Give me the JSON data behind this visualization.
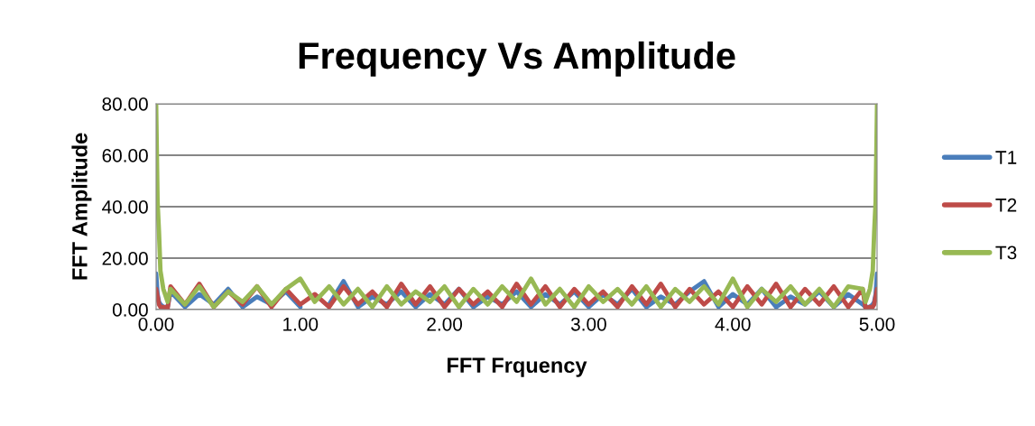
{
  "chart_data": {
    "type": "line",
    "title": "Frequency Vs Amplitude",
    "xlabel": "FFT Frquency",
    "ylabel": "FFT Amplitude",
    "x": [
      0,
      0.01,
      0.02,
      0.03,
      0.05,
      0.08,
      0.1,
      0.2,
      0.3,
      0.4,
      0.5,
      0.6,
      0.7,
      0.8,
      0.9,
      1.0,
      1.1,
      1.2,
      1.3,
      1.4,
      1.5,
      1.6,
      1.7,
      1.8,
      1.9,
      2.0,
      2.1,
      2.2,
      2.3,
      2.4,
      2.5,
      2.6,
      2.7,
      2.8,
      2.9,
      3.0,
      3.1,
      3.2,
      3.3,
      3.4,
      3.5,
      3.6,
      3.7,
      3.8,
      3.9,
      4.0,
      4.1,
      4.2,
      4.3,
      4.4,
      4.5,
      4.6,
      4.7,
      4.8,
      4.9,
      4.92,
      4.95,
      4.97,
      4.98,
      4.99,
      5.0
    ],
    "series": [
      {
        "name": "T1",
        "color": "#4a7ebb",
        "values": [
          14,
          6,
          3,
          2,
          1,
          1,
          7,
          1,
          6,
          2,
          8,
          1,
          5,
          2,
          7,
          1,
          null,
          2,
          11,
          1,
          5,
          2,
          7,
          1,
          6,
          2,
          8,
          1,
          5,
          2,
          7,
          1,
          6,
          2,
          7,
          1,
          6,
          2,
          8,
          1,
          5,
          2,
          7,
          11,
          1,
          6,
          2,
          8,
          1,
          5,
          2,
          7,
          1,
          6,
          2,
          1,
          1,
          2,
          3,
          6,
          14
        ]
      },
      {
        "name": "T2",
        "color": "#be4b48",
        "values": [
          8,
          5,
          2,
          1,
          1,
          0.5,
          9,
          2,
          10,
          1,
          7,
          2,
          9,
          1,
          8,
          2,
          6,
          1,
          9,
          2,
          7,
          1,
          10,
          2,
          9,
          1,
          8,
          2,
          7,
          1,
          10,
          2,
          9,
          1,
          8,
          2,
          7,
          1,
          9,
          2,
          10,
          1,
          8,
          2,
          7,
          1,
          9,
          2,
          10,
          1,
          8,
          2,
          9,
          1,
          8,
          0.5,
          1,
          1,
          2,
          5,
          8
        ]
      },
      {
        "name": "T3",
        "color": "#98b954",
        "values": [
          80,
          42,
          30,
          15,
          8,
          3,
          8,
          2,
          9,
          1,
          7,
          3,
          9,
          2,
          8,
          12,
          3,
          9,
          2,
          8,
          1,
          9,
          2,
          7,
          3,
          9,
          1,
          8,
          2,
          9,
          3,
          12,
          2,
          8,
          1,
          9,
          3,
          8,
          2,
          9,
          1,
          8,
          3,
          9,
          2,
          12,
          1,
          8,
          3,
          9,
          2,
          8,
          1,
          9,
          8,
          3,
          8,
          15,
          30,
          42,
          80
        ]
      }
    ],
    "xlim": [
      0,
      5
    ],
    "ylim": [
      0,
      80
    ],
    "xticks": [
      {
        "value": 0,
        "label": "0.00"
      },
      {
        "value": 1,
        "label": "1.00"
      },
      {
        "value": 2,
        "label": "2.00"
      },
      {
        "value": 3,
        "label": "3.00"
      },
      {
        "value": 4,
        "label": "4.00"
      },
      {
        "value": 5,
        "label": "5.00"
      }
    ],
    "yticks": [
      {
        "value": 0,
        "label": "0.00"
      },
      {
        "value": 20,
        "label": "20.00"
      },
      {
        "value": 40,
        "label": "40.00"
      },
      {
        "value": 60,
        "label": "60.00"
      },
      {
        "value": 80,
        "label": "80.00"
      }
    ],
    "grid": "y",
    "legend": "right",
    "marker": "none",
    "line_style": "solid"
  }
}
